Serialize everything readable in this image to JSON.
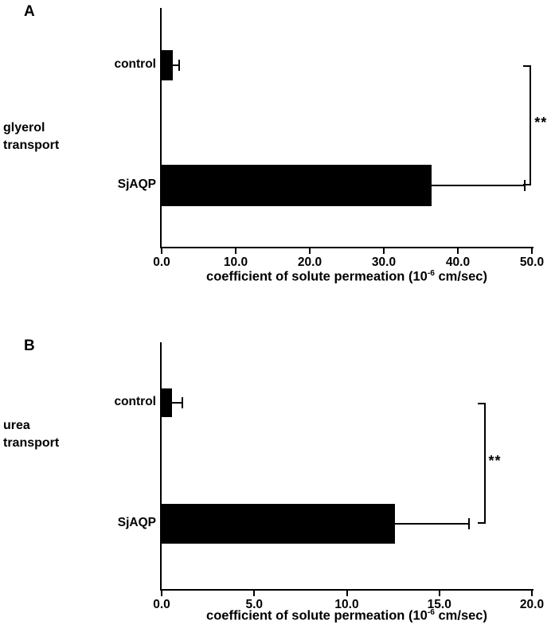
{
  "figure": {
    "background": "#ffffff",
    "bar_color": "#000000",
    "text_color": "#000000"
  },
  "chart_data": [
    {
      "type": "bar",
      "panel_letter": "A",
      "group_label_lines": [
        "glyerol",
        "transport"
      ],
      "categories": [
        "control",
        "SjAQP"
      ],
      "values": [
        1.5,
        36.5
      ],
      "errors": [
        0.9,
        12.5
      ],
      "xlim": [
        0,
        50
      ],
      "xticks": [
        0,
        10,
        20,
        30,
        40,
        50
      ],
      "xtick_labels": [
        "0.0",
        "10.0",
        "20.0",
        "30.0",
        "40.0",
        "50.0"
      ],
      "xlabel_parts": {
        "pre": "coefficient of solute permeation (10",
        "sup": "-6",
        "post": " cm/sec)"
      },
      "significance": {
        "label": "**",
        "x": 49.7
      },
      "bar_color": "#000000",
      "grid": false,
      "legend": false
    },
    {
      "type": "bar",
      "panel_letter": "B",
      "group_label_lines": [
        "urea",
        "transport"
      ],
      "categories": [
        "control",
        "SjAQP"
      ],
      "values": [
        0.55,
        12.6
      ],
      "errors": [
        0.55,
        4.0
      ],
      "xlim": [
        0,
        20
      ],
      "xticks": [
        0,
        5,
        10,
        15,
        20
      ],
      "xtick_labels": [
        "0.0",
        "5.0",
        "10.0",
        "15.0",
        "20.0"
      ],
      "xlabel_parts": {
        "pre": "coefficient of solute permeation (10",
        "sup": "-6",
        "post": " cm/sec)"
      },
      "significance": {
        "label": "**",
        "x": 17.4
      },
      "bar_color": "#000000",
      "grid": false,
      "legend": false
    }
  ]
}
